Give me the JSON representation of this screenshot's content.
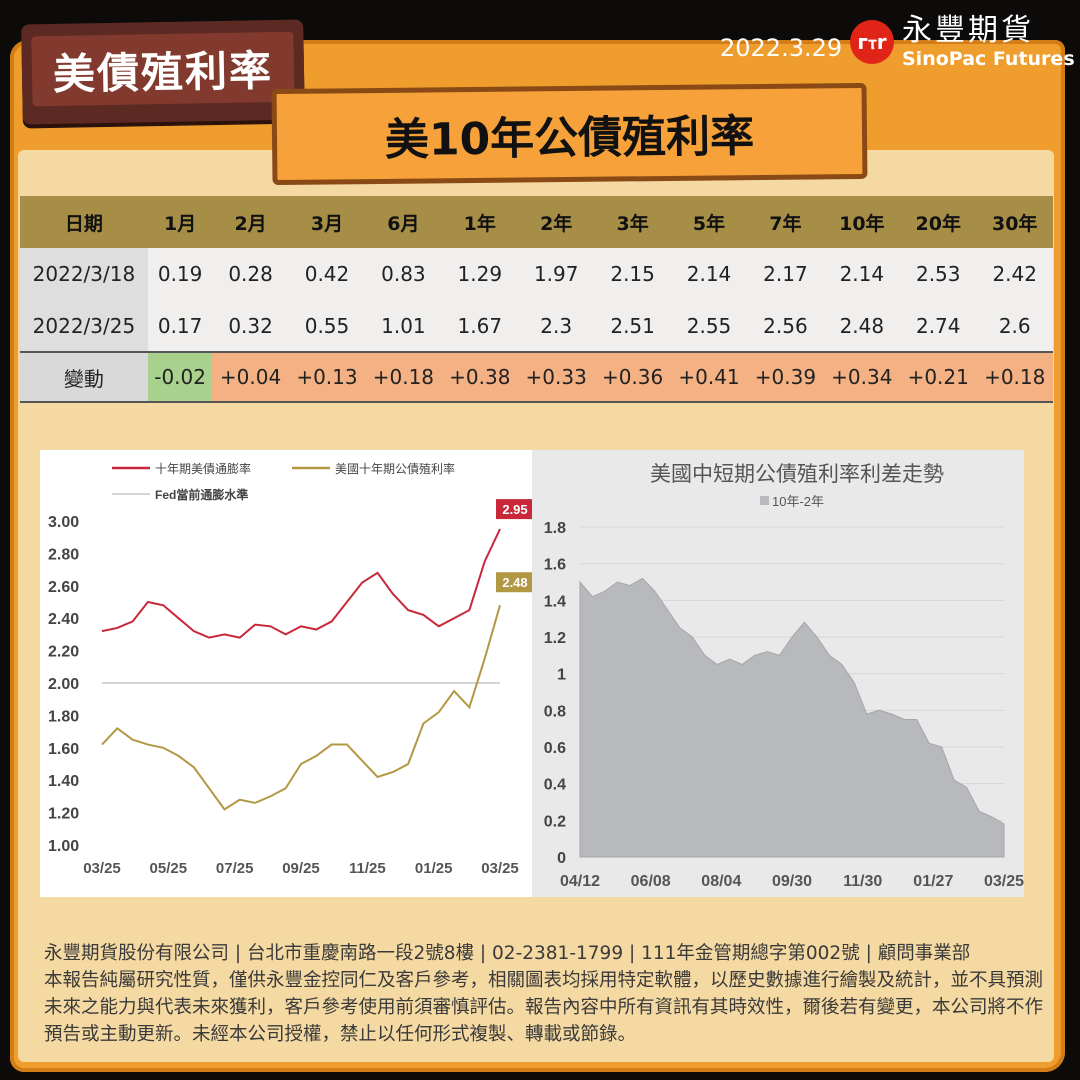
{
  "header": {
    "plaque": "美債殖利率",
    "title": "美10年公債殖利率",
    "date": "2022.3.29",
    "logo_mark": "sinopac-logo",
    "brand_cn": "永豐期貨",
    "brand_en": "SinoPac Futures"
  },
  "table": {
    "columns": [
      "日期",
      "1月",
      "2月",
      "3月",
      "6月",
      "1年",
      "2年",
      "3年",
      "5年",
      "7年",
      "10年",
      "20年",
      "30年"
    ],
    "rows": [
      [
        "2022/3/18",
        "0.19",
        "0.28",
        "0.42",
        "0.83",
        "1.29",
        "1.97",
        "2.15",
        "2.14",
        "2.17",
        "2.14",
        "2.53",
        "2.42"
      ],
      [
        "2022/3/25",
        "0.17",
        "0.32",
        "0.55",
        "1.01",
        "1.67",
        "2.3",
        "2.51",
        "2.55",
        "2.56",
        "2.48",
        "2.74",
        "2.6"
      ]
    ],
    "change": [
      "變動",
      "-0.02",
      "+0.04",
      "+0.13",
      "+0.18",
      "+0.38",
      "+0.33",
      "+0.36",
      "+0.41",
      "+0.39",
      "+0.34",
      "+0.21",
      "+0.18"
    ],
    "colors": {
      "header": "#a78e46",
      "negative": "#a9d18e",
      "positive": "#f4b183"
    }
  },
  "chart_data": [
    {
      "type": "line",
      "legend": [
        "十年期美債通膨率",
        "美國十年期公債殖利率",
        "Fed當前通膨水準"
      ],
      "x_ticks": [
        "03/25",
        "05/25",
        "07/25",
        "09/25",
        "11/25",
        "01/25",
        "03/25"
      ],
      "y_ticks": [
        "1.00",
        "1.20",
        "1.40",
        "1.60",
        "1.80",
        "2.00",
        "2.20",
        "2.40",
        "2.60",
        "2.80",
        "3.00"
      ],
      "ylim": [
        1.0,
        3.0
      ],
      "x": [
        "2021-03-25",
        "2021-04-08",
        "2021-04-22",
        "2021-05-06",
        "2021-05-20",
        "2021-06-03",
        "2021-06-17",
        "2021-07-01",
        "2021-07-15",
        "2021-07-29",
        "2021-08-12",
        "2021-08-26",
        "2021-09-09",
        "2021-09-23",
        "2021-10-07",
        "2021-10-21",
        "2021-11-04",
        "2021-11-18",
        "2021-12-02",
        "2021-12-16",
        "2021-12-30",
        "2022-01-13",
        "2022-01-27",
        "2022-02-10",
        "2022-02-24",
        "2022-03-10",
        "2022-03-24"
      ],
      "series": [
        {
          "name": "十年期美債通膨率",
          "color": "#c8283a",
          "values": [
            2.32,
            2.34,
            2.38,
            2.5,
            2.48,
            2.4,
            2.32,
            2.28,
            2.3,
            2.28,
            2.36,
            2.35,
            2.3,
            2.35,
            2.33,
            2.38,
            2.5,
            2.62,
            2.68,
            2.55,
            2.45,
            2.42,
            2.35,
            2.4,
            2.45,
            2.75,
            2.95
          ],
          "end_label": "2.95"
        },
        {
          "name": "美國十年期公債殖利率",
          "color": "#b39843",
          "values": [
            1.62,
            1.72,
            1.65,
            1.62,
            1.6,
            1.55,
            1.48,
            1.35,
            1.22,
            1.28,
            1.26,
            1.3,
            1.35,
            1.5,
            1.55,
            1.62,
            1.62,
            1.52,
            1.42,
            1.45,
            1.5,
            1.75,
            1.82,
            1.95,
            1.85,
            2.15,
            2.48
          ],
          "end_label": "2.48"
        }
      ],
      "reference_line": {
        "name": "Fed當前通膨水準",
        "value": 2.0,
        "color": "#aaaaaa"
      }
    },
    {
      "type": "area",
      "title": "美國中短期公債殖利率利差走勢",
      "legend": [
        "10年-2年"
      ],
      "x_ticks": [
        "04/12",
        "06/08",
        "08/04",
        "09/30",
        "11/30",
        "01/27",
        "03/25"
      ],
      "y_ticks": [
        "0",
        "0.2",
        "0.4",
        "0.6",
        "0.8",
        "1",
        "1.2",
        "1.4",
        "1.6",
        "1.8"
      ],
      "ylim": [
        0,
        1.8
      ],
      "series": [
        {
          "name": "10年-2年",
          "color": "#b8b9bd",
          "values": [
            1.5,
            1.42,
            1.45,
            1.5,
            1.48,
            1.52,
            1.45,
            1.35,
            1.25,
            1.2,
            1.1,
            1.05,
            1.08,
            1.05,
            1.1,
            1.12,
            1.1,
            1.2,
            1.28,
            1.2,
            1.1,
            1.05,
            0.95,
            0.78,
            0.8,
            0.78,
            0.75,
            0.75,
            0.62,
            0.6,
            0.42,
            0.38,
            0.25,
            0.22,
            0.18
          ]
        }
      ]
    }
  ],
  "footer": [
    "永豐期貨股份有限公司 | 台北市重慶南路一段2號8樓 | 02-2381-1799 | 111年金管期總字第002號 | 顧問事業部",
    "本報告純屬研究性質，僅供永豐金控同仁及客戶參考，相關圖表均採用特定軟體，以歷史數據進行繪製及統計，並不具預測未來之能力與代表未來獲利，客戶參考使用前須審慎評估。報告內容中所有資訊有其時效性，爾後若有變更，本公司將不作預告或主動更新。未經本公司授權，禁止以任何形式複製、轉載或節錄。"
  ]
}
